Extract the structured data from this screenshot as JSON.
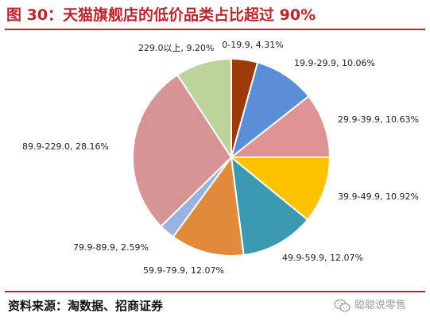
{
  "title": "图 30：天猫旗舰店的低价品类占比超过 90%",
  "source": "资料来源：淘数据、招商证券",
  "watermark": "聪聪说零售",
  "chart_data": {
    "type": "pie",
    "title": "",
    "start_angle_deg": 0,
    "direction": "clockwise",
    "slices": [
      {
        "category": "0-19.9",
        "value": 4.31,
        "label": "0-19.9, 4.31%",
        "color": "#9e3a0a"
      },
      {
        "category": "19.9-29.9",
        "value": 10.06,
        "label": "19.9-29.9, 10.06%",
        "color": "#5a8fd8"
      },
      {
        "category": "29.9-39.9",
        "value": 10.63,
        "label": "29.9-39.9, 10.63%",
        "color": "#de9494"
      },
      {
        "category": "39.9-49.9",
        "value": 10.92,
        "label": "39.9-49.9, 10.92%",
        "color": "#fcc200"
      },
      {
        "category": "49.9-59.9",
        "value": 12.07,
        "label": "49.9-59.9, 12.07%",
        "color": "#3a9bb0"
      },
      {
        "category": "59.9-79.9",
        "value": 12.07,
        "label": "59.9-79.9, 12.07%",
        "color": "#e08a3c"
      },
      {
        "category": "79.9-89.9",
        "value": 2.59,
        "label": "79.9-89.9, 2.59%",
        "color": "#9ab2de"
      },
      {
        "category": "89.9-229.0",
        "value": 28.16,
        "label": "89.9-229.0, 28.16%",
        "color": "#d69494"
      },
      {
        "category": "229.0以上",
        "value": 9.2,
        "label": "229.0以上, 9.20%",
        "color": "#bcd49c"
      }
    ]
  }
}
